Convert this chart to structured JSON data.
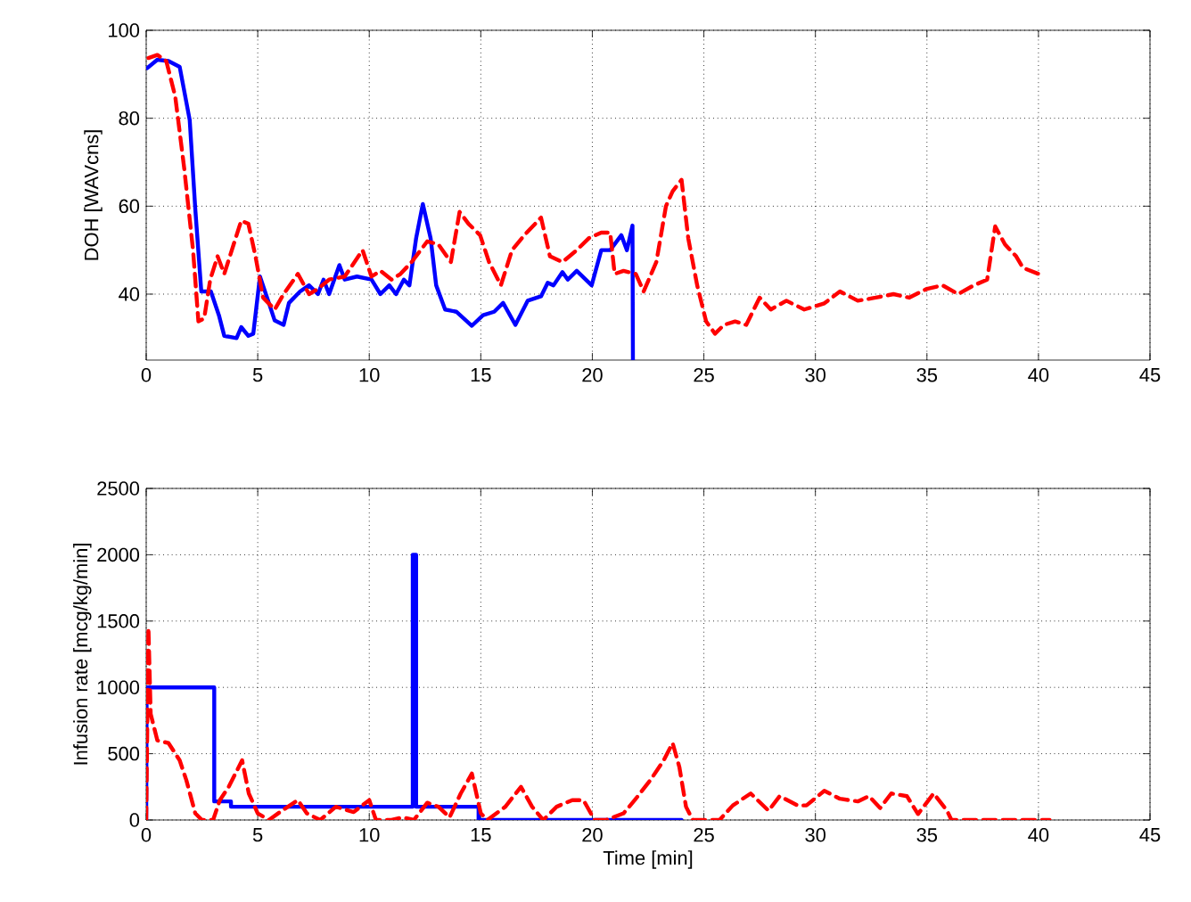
{
  "chart_data": [
    {
      "type": "line",
      "ylabel": "DOH [WAVcns]",
      "xlim": [
        0,
        45
      ],
      "ylim": [
        25,
        100
      ],
      "xticks": [
        0,
        5,
        10,
        15,
        20,
        25,
        30,
        35,
        40,
        45
      ],
      "yticks": [
        40,
        60,
        80,
        100
      ],
      "grid": true,
      "series": [
        {
          "color": "#0000ff",
          "line_style": "solid",
          "x": [
            0.05,
            0.5,
            1.0,
            1.5,
            1.95,
            2.2,
            2.47,
            2.9,
            3.26,
            3.5,
            4.05,
            4.26,
            4.58,
            4.8,
            5.1,
            5.5,
            5.76,
            6.16,
            6.4,
            6.9,
            7.3,
            7.7,
            7.95,
            8.2,
            8.66,
            8.9,
            9.45,
            10.1,
            10.5,
            10.9,
            11.2,
            11.55,
            11.8,
            12.1,
            12.4,
            12.75,
            13.0,
            13.4,
            13.9,
            14.6,
            15.1,
            15.6,
            16.0,
            16.55,
            17.1,
            17.7,
            18.0,
            18.26,
            18.66,
            18.9,
            19.3,
            19.97,
            20.4,
            20.8,
            21.3,
            21.55,
            21.8,
            21.82
          ],
          "values": [
            91.4,
            93.3,
            93,
            91.7,
            79.6,
            59.4,
            40.6,
            40.6,
            35.2,
            30.5,
            30,
            32.5,
            30.5,
            31,
            44,
            38,
            34,
            33,
            38,
            40.6,
            42,
            40,
            43.3,
            40,
            46.6,
            43.3,
            44,
            43.3,
            40,
            42,
            40,
            43.3,
            42,
            52.7,
            60.5,
            52.7,
            42,
            36.5,
            36,
            32.8,
            35.2,
            36,
            38,
            33,
            38.5,
            39.5,
            42.6,
            42,
            45,
            43.3,
            45.3,
            42,
            50,
            50,
            53.4,
            50,
            55.6,
            25
          ]
        },
        {
          "color": "#ff0000",
          "line_style": "dashed",
          "x": [
            0.1,
            0.5,
            0.9,
            1.3,
            1.7,
            2.1,
            2.34,
            2.6,
            2.87,
            3.2,
            3.5,
            3.92,
            4.26,
            4.58,
            4.9,
            5.24,
            5.76,
            6.16,
            6.8,
            7.3,
            7.7,
            8.2,
            8.9,
            9.7,
            10.1,
            10.5,
            11.0,
            11.4,
            11.9,
            12.6,
            13.1,
            13.66,
            14.05,
            14.45,
            14.97,
            15.37,
            15.9,
            16.4,
            16.95,
            17.7,
            18.1,
            18.66,
            19.3,
            19.84,
            20.4,
            20.8,
            21.0,
            21.4,
            21.95,
            22.3,
            22.87,
            23.3,
            23.6,
            24.0,
            24.3,
            24.7,
            25.1,
            25.5,
            25.9,
            26.4,
            26.9,
            27.5,
            28.0,
            28.7,
            29.5,
            30.4,
            31.1,
            31.9,
            32.7,
            33.5,
            34.2,
            35.0,
            35.7,
            36.4,
            37.1,
            37.7,
            38.06,
            38.5,
            39.0,
            39.3,
            40.2
          ],
          "values": [
            93.7,
            94.4,
            93,
            85,
            68.8,
            50,
            33.8,
            34.5,
            43.3,
            48.6,
            44.6,
            51.3,
            56.7,
            56,
            48.6,
            39.2,
            36.5,
            40,
            44.6,
            40,
            41.2,
            43.3,
            44,
            50,
            44,
            45.3,
            43.3,
            44.6,
            47.3,
            52,
            51.3,
            47.3,
            58.7,
            56,
            53.4,
            47.3,
            42,
            50,
            53.4,
            57.4,
            48.6,
            47.3,
            50,
            52.7,
            54,
            54,
            44.6,
            45.3,
            44.6,
            40.6,
            47.3,
            60,
            63.4,
            66,
            52.7,
            42,
            33.8,
            31,
            33,
            33.8,
            33,
            39.2,
            36.5,
            38.5,
            36.5,
            37.9,
            40.6,
            38.5,
            39.2,
            40,
            39.2,
            41.2,
            42,
            40,
            42,
            43.3,
            55.4,
            51.3,
            48.6,
            46,
            44.2
          ]
        }
      ]
    },
    {
      "type": "line",
      "xlabel": "Time [min]",
      "ylabel": "Infusion rate [mcg/kg/min]",
      "xlim": [
        0,
        45
      ],
      "ylim": [
        0,
        2500
      ],
      "xticks": [
        0,
        5,
        10,
        15,
        20,
        25,
        30,
        35,
        40,
        45
      ],
      "yticks": [
        0,
        500,
        1000,
        1500,
        2000,
        2500
      ],
      "grid": true,
      "series": [
        {
          "color": "#0000ff",
          "line_style": "solid",
          "x": [
            0,
            0.02,
            3.05,
            3.05,
            3.8,
            3.8,
            11.95,
            11.95,
            12.1,
            12.1,
            14.9,
            14.9,
            24.0
          ],
          "values": [
            0,
            1000,
            1000,
            140,
            140,
            100,
            100,
            2000,
            2000,
            100,
            100,
            0,
            0
          ]
        },
        {
          "color": "#ff0000",
          "line_style": "dashed",
          "x": [
            0,
            0.1,
            0.2,
            0.5,
            1.0,
            1.5,
            1.8,
            2.2,
            2.5,
            3.0,
            3.3,
            3.7,
            4.3,
            4.6,
            5.0,
            5.5,
            6.0,
            6.8,
            7.2,
            7.8,
            8.5,
            9.3,
            10.0,
            10.3,
            11.0,
            11.5,
            12.0,
            12.6,
            13.1,
            13.6,
            14.1,
            14.6,
            15.0,
            15.3,
            16.1,
            16.8,
            17.3,
            17.8,
            18.4,
            19.1,
            19.6,
            20.1,
            20.6,
            21.4,
            21.9,
            22.6,
            23.2,
            23.6,
            23.9,
            24.2,
            24.5,
            25.7,
            26.3,
            27.1,
            27.9,
            28.4,
            29.2,
            29.6,
            30.4,
            31.1,
            31.9,
            32.4,
            32.9,
            33.4,
            34.1,
            34.6,
            35.3,
            35.9,
            36.1,
            40.5
          ],
          "values": [
            0,
            1450,
            800,
            600,
            580,
            450,
            300,
            50,
            0,
            0,
            150,
            250,
            450,
            200,
            50,
            0,
            60,
            150,
            50,
            0,
            100,
            60,
            150,
            0,
            0,
            20,
            0,
            130,
            100,
            20,
            200,
            350,
            50,
            0,
            100,
            250,
            100,
            0,
            100,
            150,
            150,
            0,
            0,
            50,
            150,
            300,
            450,
            580,
            400,
            100,
            0,
            0,
            110,
            200,
            70,
            180,
            110,
            110,
            220,
            160,
            140,
            180,
            90,
            200,
            180,
            45,
            200,
            70,
            0,
            0
          ]
        }
      ]
    }
  ]
}
